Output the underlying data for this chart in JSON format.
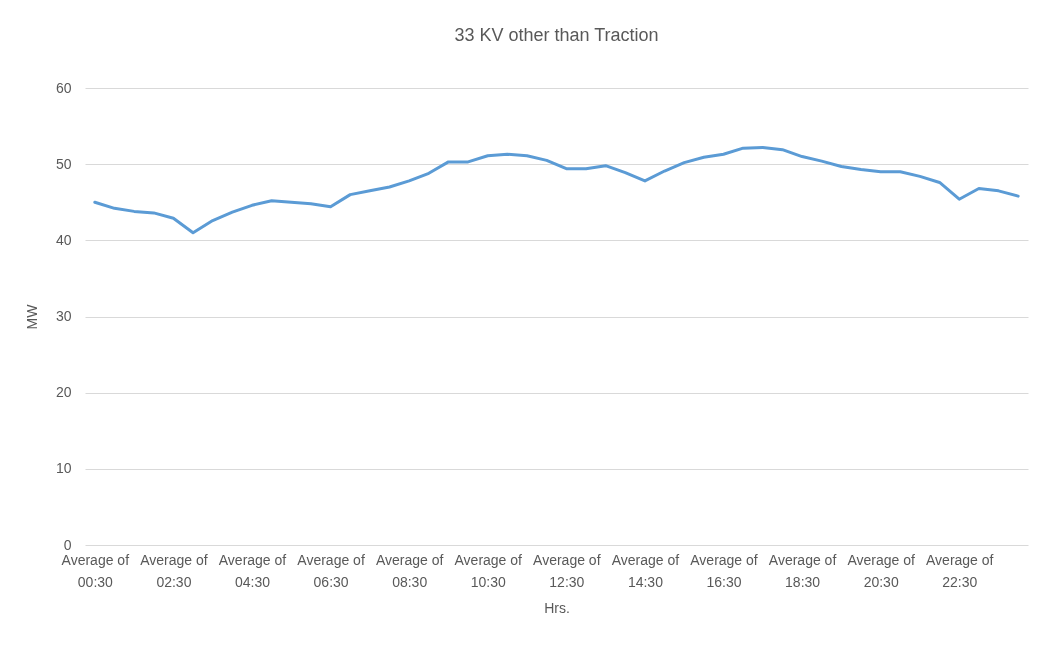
{
  "chart_data": {
    "type": "line",
    "title": "33 KV other than Traction",
    "xlabel": "Hrs.",
    "ylabel": "MW",
    "categories": [
      "Average of 00:30",
      null,
      null,
      null,
      "Average of 02:30",
      null,
      null,
      null,
      "Average of 04:30",
      null,
      null,
      null,
      "Average of 06:30",
      null,
      null,
      null,
      "Average of 08:30",
      null,
      null,
      null,
      "Average of 10:30",
      null,
      null,
      null,
      "Average of 12:30",
      null,
      null,
      null,
      "Average of 14:30",
      null,
      null,
      null,
      "Average of 16:30",
      null,
      null,
      null,
      "Average of 18:30",
      null,
      null,
      null,
      "Average of 20:30",
      null,
      null,
      null,
      "Average of 22:30",
      null,
      null,
      null
    ],
    "series": [
      {
        "color": "#5b9bd5",
        "values": [
          45.0,
          44.2,
          43.8,
          43.6,
          42.9,
          41.0,
          42.6,
          43.7,
          44.6,
          45.2,
          45.0,
          44.8,
          44.4,
          46.0,
          46.5,
          47.0,
          47.8,
          48.8,
          50.3,
          50.3,
          51.1,
          51.3,
          51.1,
          50.5,
          49.4,
          49.4,
          49.8,
          48.9,
          47.8,
          49.1,
          50.2,
          50.9,
          51.3,
          52.1,
          52.2,
          51.9,
          51.0,
          50.4,
          49.7,
          49.3,
          49.0,
          49.0,
          48.4,
          47.6,
          45.4,
          46.8,
          46.5,
          45.8
        ]
      }
    ],
    "ylim": [
      0,
      60
    ],
    "yticks": [
      0,
      10,
      20,
      30,
      40,
      50,
      60
    ],
    "grid": "y",
    "legend": false
  }
}
